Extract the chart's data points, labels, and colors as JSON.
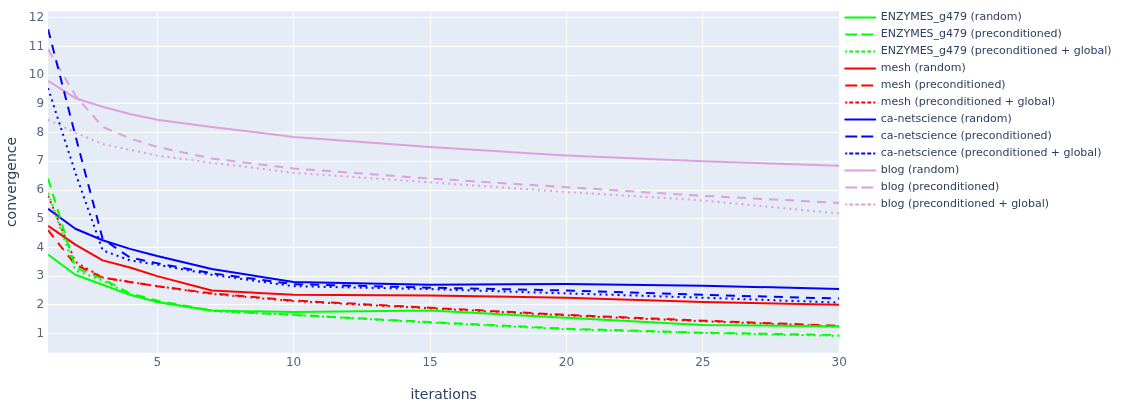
{
  "chart_data": {
    "type": "line",
    "xlabel": "iterations",
    "ylabel": "convergence",
    "x": [
      1,
      2,
      3,
      4,
      5,
      7,
      10,
      15,
      20,
      25,
      30
    ],
    "xlim": [
      1,
      30
    ],
    "xticks": [
      5,
      10,
      15,
      20,
      25,
      30
    ],
    "ylim": [
      0.33,
      12.23
    ],
    "yticks": [
      1,
      2,
      3,
      4,
      5,
      6,
      7,
      8,
      9,
      10,
      11,
      12
    ],
    "grid": true,
    "legend": "right",
    "marker": "none",
    "series": [
      {
        "name": "ENZYMES_g479 (random)",
        "color": "#00ff00",
        "line_style": "solid",
        "values": [
          3.75,
          3.05,
          2.7,
          2.35,
          2.1,
          1.8,
          1.75,
          1.8,
          1.55,
          1.3,
          1.25
        ]
      },
      {
        "name": "ENZYMES_g479 (preconditioned)",
        "color": "#00ff00",
        "line_style": "dashed",
        "values": [
          6.4,
          3.3,
          2.9,
          2.4,
          2.15,
          1.8,
          1.65,
          1.4,
          1.17,
          1.03,
          0.95
        ]
      },
      {
        "name": "ENZYMES_g479 (preconditioned + global)",
        "color": "#00ff00",
        "line_style": "dotted",
        "values": [
          5.9,
          3.2,
          2.85,
          2.35,
          2.1,
          1.78,
          1.65,
          1.38,
          1.15,
          1.02,
          0.92
        ]
      },
      {
        "name": "mesh (random)",
        "color": "#ff0000",
        "line_style": "solid",
        "values": [
          4.75,
          4.1,
          3.55,
          3.3,
          3.0,
          2.5,
          2.35,
          2.33,
          2.25,
          2.1,
          2.0
        ]
      },
      {
        "name": "mesh (preconditioned)",
        "color": "#ff0000",
        "line_style": "dashed",
        "values": [
          4.6,
          3.4,
          2.95,
          2.8,
          2.65,
          2.4,
          2.15,
          1.9,
          1.65,
          1.45,
          1.27
        ]
      },
      {
        "name": "mesh (preconditioned + global)",
        "color": "#ff0000",
        "line_style": "dotted",
        "values": [
          5.8,
          3.5,
          2.95,
          2.8,
          2.65,
          2.38,
          2.13,
          1.88,
          1.63,
          1.43,
          1.25
        ]
      },
      {
        "name": "ca-netscience (random)",
        "color": "#0000ff",
        "line_style": "solid",
        "values": [
          5.35,
          4.65,
          4.25,
          3.95,
          3.7,
          3.25,
          2.8,
          2.7,
          2.73,
          2.67,
          2.55
        ]
      },
      {
        "name": "ca-netscience (preconditioned)",
        "color": "#0000ff",
        "line_style": "dashed",
        "values": [
          11.6,
          7.9,
          4.3,
          3.65,
          3.45,
          3.1,
          2.72,
          2.6,
          2.5,
          2.35,
          2.22
        ]
      },
      {
        "name": "ca-netscience (preconditioned + global)",
        "color": "#0000ff",
        "line_style": "dotted",
        "values": [
          9.55,
          6.6,
          3.9,
          3.55,
          3.4,
          3.05,
          2.65,
          2.55,
          2.4,
          2.25,
          2.08
        ]
      },
      {
        "name": "blog (random)",
        "color": "#dda0dd",
        "line_style": "solid",
        "values": [
          9.8,
          9.2,
          8.9,
          8.65,
          8.45,
          8.2,
          7.85,
          7.5,
          7.2,
          7.0,
          6.85
        ]
      },
      {
        "name": "blog (preconditioned)",
        "color": "#dda0dd",
        "line_style": "dashed",
        "values": [
          10.9,
          9.3,
          8.2,
          7.8,
          7.5,
          7.1,
          6.75,
          6.4,
          6.1,
          5.8,
          5.55
        ]
      },
      {
        "name": "blog (preconditioned + global)",
        "color": "#dda0dd",
        "line_style": "dotted",
        "values": [
          8.45,
          8.0,
          7.6,
          7.4,
          7.2,
          6.95,
          6.6,
          6.27,
          5.93,
          5.64,
          5.18
        ]
      }
    ]
  }
}
